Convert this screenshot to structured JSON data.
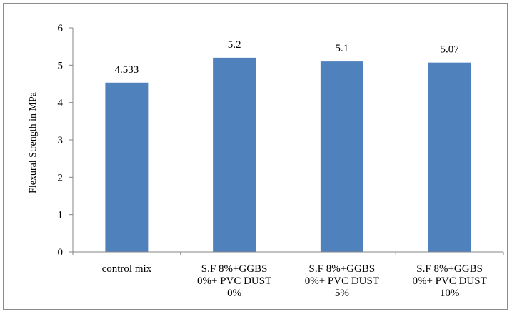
{
  "chart_data": {
    "type": "bar",
    "title": "",
    "xlabel": "",
    "ylabel": "Flexural Strength in MPa",
    "ylim": [
      0,
      6
    ],
    "yticks": [
      "0",
      "1",
      "2",
      "3",
      "4",
      "5",
      "6"
    ],
    "grid": false,
    "legend": "none",
    "categories": [
      [
        "control mix"
      ],
      [
        "S.F 8%+GGBS",
        "0%+ PVC DUST",
        "0%"
      ],
      [
        "S.F 8%+GGBS",
        "0%+ PVC DUST",
        "5%"
      ],
      [
        "S.F 8%+GGBS",
        "0%+ PVC DUST",
        "10%"
      ]
    ],
    "values": [
      4.533,
      5.2,
      5.1,
      5.07
    ],
    "data_labels": [
      "4.533",
      "5.2",
      "5.1",
      "5.07"
    ],
    "bar_color": "#4f81bd",
    "axis_color": "#868686"
  }
}
